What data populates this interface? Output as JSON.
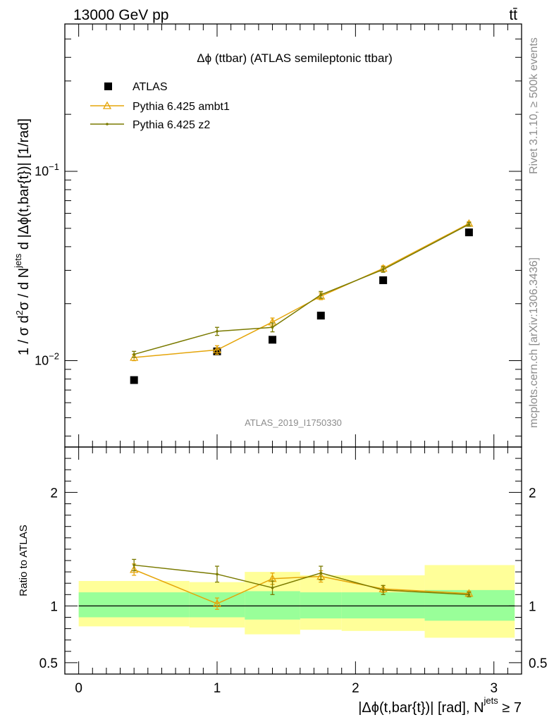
{
  "header": {
    "energy_label": "13000 GeV pp",
    "process_label": "tt̄"
  },
  "side": {
    "rivet_label": "Rivet 3.1.10, ≥ 500k events",
    "mcplots_label": "mcplots.cern.ch [arXiv:1306.3436]"
  },
  "chart_data": [
    {
      "type": "scatter",
      "panel": "main",
      "title": "Δϕ (ttbar) (ATLAS semileptonic ttbar)",
      "watermark": "ATLAS_2019_I1750330",
      "ylabel": "1 / σ d²σ / d N^jets d |Δϕ(t,bar{t})| [1/rad]",
      "yscale": "log",
      "xlim": [
        -0.1,
        3.2
      ],
      "ylim": [
        0.0035,
        0.6
      ],
      "y_tick_labels": [
        {
          "value": 0.1,
          "base": "10",
          "exp": "−1"
        },
        {
          "value": 0.01,
          "base": "10",
          "exp": "−2"
        }
      ],
      "legend_position": "top-left",
      "series": [
        {
          "name": "ATLAS",
          "style": "data",
          "color": "#000000",
          "x": [
            0.4,
            1.0,
            1.4,
            1.75,
            2.2,
            2.82
          ],
          "y": [
            0.0079,
            0.0112,
            0.0129,
            0.0173,
            0.0266,
            0.0476
          ]
        },
        {
          "name": "Pythia 6.425 ambt1",
          "style": "triangle",
          "color": "#e5a50a",
          "x": [
            0.4,
            1.0,
            1.4,
            1.75,
            2.2,
            2.82
          ],
          "y": [
            0.0104,
            0.0114,
            0.016,
            0.0219,
            0.0307,
            0.053
          ],
          "err": [
            0.0004,
            0.0006,
            0.0008,
            0.0009,
            0.001,
            0.0012
          ]
        },
        {
          "name": "Pythia 6.425 z2",
          "style": "dot",
          "color": "#7a7a00",
          "x": [
            0.4,
            1.0,
            1.4,
            1.75,
            2.2,
            2.82
          ],
          "y": [
            0.0108,
            0.0143,
            0.015,
            0.0223,
            0.0303,
            0.0525
          ],
          "err": [
            0.0004,
            0.0007,
            0.0008,
            0.0009,
            0.001,
            0.0012
          ]
        }
      ]
    },
    {
      "type": "scatter",
      "panel": "ratio",
      "ylabel": "Ratio to ATLAS",
      "xlabel": "|Δϕ(t,bar{t})| [rad], N",
      "xlabel_sup": "jets",
      "xlabel_tail": " ≥ 7",
      "xlim": [
        -0.1,
        3.2
      ],
      "ylim": [
        0.4,
        2.4
      ],
      "x_ticks": [
        0,
        1,
        2,
        3
      ],
      "x_tick_labels": [
        "0",
        "1",
        "2",
        "3"
      ],
      "y_ticks": [
        0.5,
        1,
        2
      ],
      "y_tick_labels": [
        "0.5",
        "1",
        "2"
      ],
      "bands": {
        "bins": [
          [
            0.0,
            0.8
          ],
          [
            0.8,
            1.2
          ],
          [
            1.2,
            1.6
          ],
          [
            1.6,
            1.9
          ],
          [
            1.9,
            2.5
          ],
          [
            2.5,
            3.15
          ]
        ],
        "stat": [
          [
            0.9,
            1.12
          ],
          [
            0.9,
            1.12
          ],
          [
            0.88,
            1.13
          ],
          [
            0.89,
            1.12
          ],
          [
            0.89,
            1.12
          ],
          [
            0.87,
            1.14
          ]
        ],
        "total": [
          [
            0.82,
            1.22
          ],
          [
            0.81,
            1.21
          ],
          [
            0.75,
            1.3
          ],
          [
            0.79,
            1.27
          ],
          [
            0.78,
            1.27
          ],
          [
            0.72,
            1.36
          ]
        ],
        "stat_color": "#99ff99",
        "total_color": "#ffff99"
      },
      "series": [
        {
          "name": "Pythia 6.425 ambt1",
          "style": "triangle",
          "color": "#e5a50a",
          "x": [
            0.4,
            1.0,
            1.4,
            1.75,
            2.2,
            2.82
          ],
          "y": [
            1.32,
            1.02,
            1.24,
            1.26,
            1.15,
            1.11
          ],
          "err": [
            0.05,
            0.05,
            0.05,
            0.05,
            0.03,
            0.02
          ]
        },
        {
          "name": "Pythia 6.425 z2",
          "style": "dot",
          "color": "#7a7a00",
          "x": [
            0.4,
            1.0,
            1.4,
            1.75,
            2.2,
            2.82
          ],
          "y": [
            1.36,
            1.28,
            1.16,
            1.29,
            1.14,
            1.1
          ],
          "err": [
            0.05,
            0.07,
            0.06,
            0.06,
            0.04,
            0.02
          ]
        }
      ]
    }
  ]
}
